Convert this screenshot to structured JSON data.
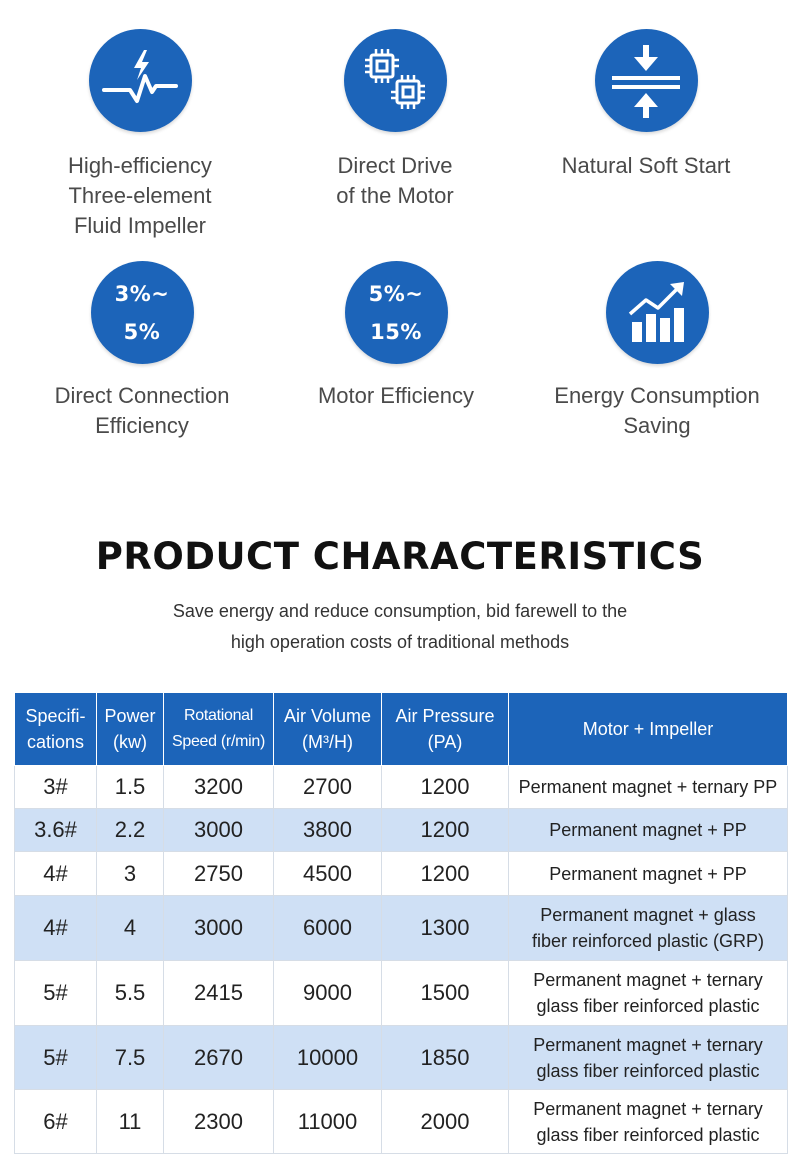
{
  "features": [
    {
      "icon": "pulse-lightning-icon",
      "label": "High-efficiency\nThree-element\nFluid Impeller"
    },
    {
      "icon": "chips-icon",
      "label": "Direct Drive\nof the Motor"
    },
    {
      "icon": "soft-start-arrows-icon",
      "label": "Natural Soft Start"
    },
    {
      "icon": "",
      "badge_line1": "3%~",
      "badge_line2": "5%",
      "label": "Direct Connection\nEfficiency"
    },
    {
      "icon": "",
      "badge_line1": "5%~",
      "badge_line2": "15%",
      "label": "Motor Efficiency"
    },
    {
      "icon": "bar-chart-up-icon",
      "label": "Energy Consumption\nSaving"
    }
  ],
  "section": {
    "title": "PRODUCT CHARACTERISTICS",
    "subtitle": "Save energy and reduce consumption, bid farewell to the\nhigh operation costs of traditional methods"
  },
  "table": {
    "headers": [
      "Specifi-\ncations",
      "Power\n(kw)",
      "Rotational\nSpeed (r/min)",
      "Air Volume\n(M³/H)",
      "Air Pressure\n(PA)",
      "Motor + Impeller"
    ],
    "rows": [
      [
        "3#",
        "1.5",
        "3200",
        "2700",
        "1200",
        "Permanent magnet + ternary PP"
      ],
      [
        "3.6#",
        "2.2",
        "3000",
        "3800",
        "1200",
        "Permanent magnet + PP"
      ],
      [
        "4#",
        "3",
        "2750",
        "4500",
        "1200",
        "Permanent magnet + PP"
      ],
      [
        "4#",
        "4",
        "3000",
        "6000",
        "1300",
        "Permanent magnet + glass\nfiber reinforced plastic (GRP)"
      ],
      [
        "5#",
        "5.5",
        "2415",
        "9000",
        "1500",
        "Permanent magnet + ternary\nglass fiber reinforced plastic"
      ],
      [
        "5#",
        "7.5",
        "2670",
        "10000",
        "1850",
        "Permanent magnet + ternary\nglass fiber reinforced plastic"
      ],
      [
        "6#",
        "11",
        "2300",
        "11000",
        "2000",
        "Permanent magnet + ternary\nglass fiber reinforced plastic"
      ]
    ]
  },
  "colors": {
    "accent": "#1c64b9",
    "row_alt": "#cfe0f5"
  }
}
